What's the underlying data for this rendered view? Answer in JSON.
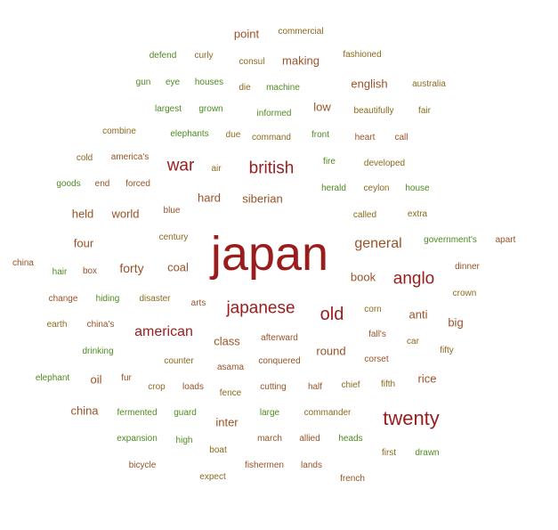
{
  "colors": {
    "dark_red": "#9b1c1c",
    "brown": "#9a5227",
    "olive": "#8b6a1e",
    "green": "#4d8b1f"
  },
  "words": [
    "point",
    "commercial",
    "defend",
    "curly",
    "consul",
    "making",
    "fashioned",
    "gun",
    "eye",
    "houses",
    "die",
    "machine",
    "english",
    "australia",
    "largest",
    "grown",
    "informed",
    "low",
    "beautifully",
    "fair",
    "combine",
    "elephants",
    "due",
    "command",
    "front",
    "heart",
    "call",
    "cold",
    "america's",
    "war",
    "air",
    "british",
    "fire",
    "developed",
    "goods",
    "end",
    "forced",
    "hard",
    "siberian",
    "herald",
    "ceylon",
    "house",
    "held",
    "world",
    "blue",
    "called",
    "extra",
    "four",
    "century",
    "japan",
    "general",
    "government's",
    "apart",
    "china",
    "hair",
    "box",
    "forty",
    "coal",
    "anglo",
    "book",
    "dinner",
    "change",
    "hiding",
    "disaster",
    "arts",
    "japanese",
    "corn",
    "crown",
    "old",
    "anti",
    "big",
    "earth",
    "china's",
    "american",
    "fall's",
    "drinking",
    "class",
    "afterward",
    "round",
    "car",
    "fifty",
    "counter",
    "asama",
    "conquered",
    "corset",
    "elephant",
    "oil",
    "fur",
    "crop",
    "loads",
    "fence",
    "cutting",
    "half",
    "chief",
    "fifth",
    "rice",
    "china",
    "fermented",
    "guard",
    "inter",
    "large",
    "commander",
    "twenty",
    "expansion",
    "high",
    "boat",
    "march",
    "allied",
    "heads",
    "first",
    "drawn",
    "bicycle",
    "fishermen",
    "lands",
    "expect",
    "french"
  ]
}
